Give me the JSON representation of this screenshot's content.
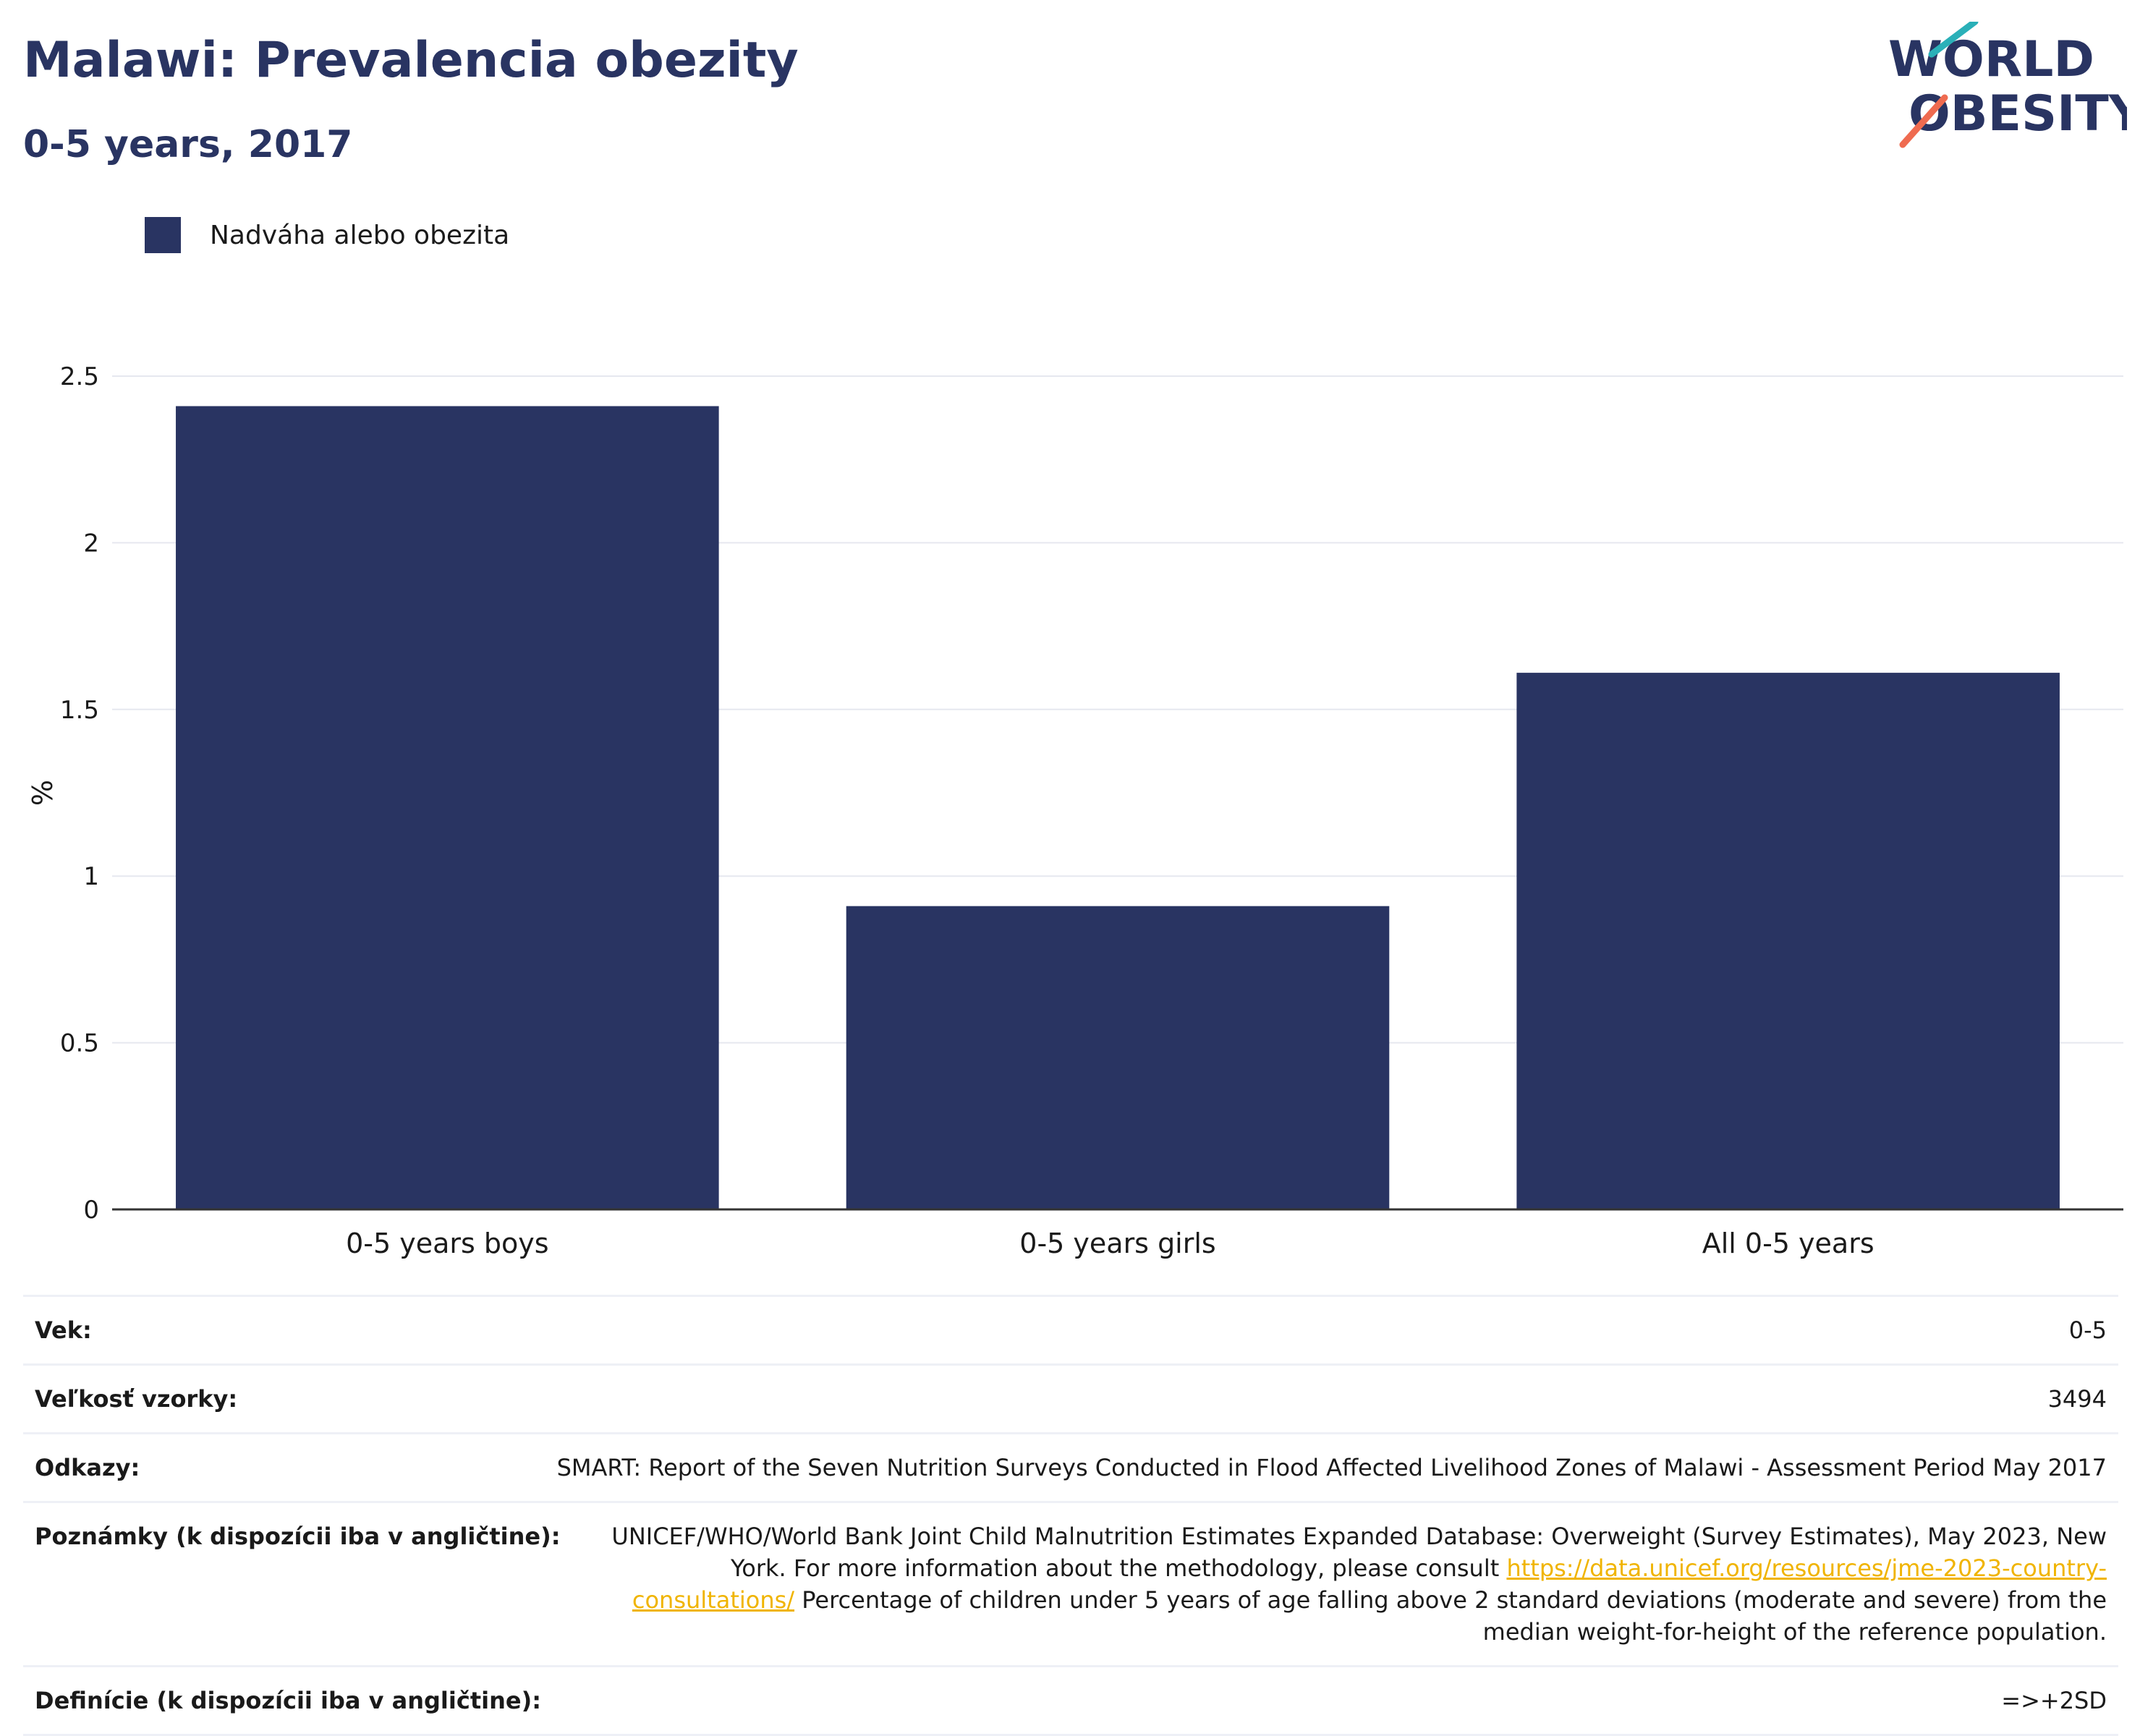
{
  "header": {
    "title": "Malawi: Prevalencia obezity",
    "subtitle": "0-5 years, 2017"
  },
  "logo": {
    "line1": "WORLD",
    "line2": "OBESITY"
  },
  "colors": {
    "bar": "#293462",
    "text": "#293462",
    "link": "#f0b400",
    "grid": "#e6e8ef"
  },
  "chart_data": {
    "type": "bar",
    "categories": [
      "0-5 years boys",
      "0-5 years girls",
      "All 0-5 years"
    ],
    "series": [
      {
        "name": "Nadváha alebo obezita",
        "values": [
          2.41,
          0.91,
          1.61
        ]
      }
    ],
    "ylabel": "%",
    "ylim": [
      0,
      2.5
    ],
    "yticks": [
      0,
      0.5,
      1,
      1.5,
      2,
      2.5
    ],
    "ytick_labels": [
      "0",
      "0.5",
      "1",
      "1.5",
      "2",
      "2.5"
    ],
    "grid": true,
    "legend": "top-left"
  },
  "info": {
    "rows": [
      {
        "label": "Vek:",
        "value": "0-5"
      },
      {
        "label": "Veľkosť vzorky:",
        "value": "3494"
      },
      {
        "label": "Odkazy:",
        "value": "SMART: Report of the Seven Nutrition Surveys Conducted in Flood Affected Livelihood Zones of Malawi - Assessment Period May 2017"
      },
      {
        "label": "Definície (k dispozícii iba v angličtine):",
        "value": "=>+2SD"
      }
    ],
    "notes": {
      "label": "Poznámky (k dispozícii iba v angličtine):",
      "text_before": "UNICEF/WHO/World Bank Joint Child Malnutrition Estimates Expanded Database: Overweight (Survey Estimates), May 2023, New York. For more information about the methodology, please consult ",
      "link": "https://data.unicef.org/resources/jme-2023-country-consultations/",
      "text_after": " Percentage of children under 5 years of age falling above 2 standard deviations (moderate and severe) from the median weight-for-height of the reference population."
    }
  }
}
